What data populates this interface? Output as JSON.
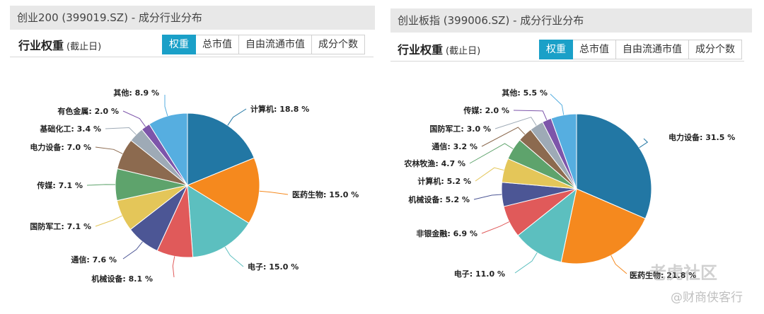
{
  "panels": [
    {
      "title": "创业200 (399019.SZ) - 成分行业分布",
      "heading": "行业权重",
      "note": "(截止日)",
      "tabs": [
        "权重",
        "总市值",
        "自由流通市值",
        "成分个数"
      ],
      "active_tab": 0
    },
    {
      "title": "创业板指 (399006.SZ) - 成分行业分布",
      "heading": "行业权重",
      "note": "(截止日)",
      "tabs": [
        "权重",
        "总市值",
        "自由流通市值",
        "成分个数"
      ],
      "active_tab": 0
    }
  ],
  "chart_data": [
    {
      "type": "pie",
      "slices": [
        {
          "label": "计算机",
          "value": 18.8,
          "color": "#2277a4",
          "text": "计算机: 18.8 %"
        },
        {
          "label": "医药生物",
          "value": 15.0,
          "color": "#f5891e",
          "text": "医药生物: 15.0 %"
        },
        {
          "label": "电子",
          "value": 15.0,
          "color": "#5cbfbf",
          "text": "电子: 15.0 %"
        },
        {
          "label": "机械设备",
          "value": 8.1,
          "color": "#e05a5a",
          "text": "机械设备: 8.1 %"
        },
        {
          "label": "通信",
          "value": 7.6,
          "color": "#4c5695",
          "text": "通信: 7.6 %"
        },
        {
          "label": "国防军工",
          "value": 7.1,
          "color": "#e4c659",
          "text": "国防军工: 7.1 %"
        },
        {
          "label": "传媒",
          "value": 7.1,
          "color": "#5ea36c",
          "text": "传媒: 7.1 %"
        },
        {
          "label": "电力设备",
          "value": 7.0,
          "color": "#8c6a4f",
          "text": "电力设备: 7.0 %"
        },
        {
          "label": "基础化工",
          "value": 3.4,
          "color": "#9eaab6",
          "text": "基础化工: 3.4 %"
        },
        {
          "label": "有色金属",
          "value": 2.0,
          "color": "#7d55aa",
          "text": "有色金属: 2.0 %"
        },
        {
          "label": "其他",
          "value": 8.9,
          "color": "#56aee0",
          "text": "其他: 8.9 %"
        }
      ]
    },
    {
      "type": "pie",
      "slices": [
        {
          "label": "电力设备",
          "value": 31.5,
          "color": "#2277a4",
          "text": "电力设备: 31.5 %"
        },
        {
          "label": "医药生物",
          "value": 21.8,
          "color": "#f5891e",
          "text": "医药生物: 21.8 %"
        },
        {
          "label": "电子",
          "value": 11.0,
          "color": "#5cbfbf",
          "text": "电子: 11.0 %"
        },
        {
          "label": "非银金融",
          "value": 6.9,
          "color": "#e05a5a",
          "text": "非银金融: 6.9 %"
        },
        {
          "label": "机械设备",
          "value": 5.2,
          "color": "#4c5695",
          "text": "机械设备: 5.2 %"
        },
        {
          "label": "计算机",
          "value": 5.2,
          "color": "#e4c659",
          "text": "计算机: 5.2 %"
        },
        {
          "label": "农林牧渔",
          "value": 4.7,
          "color": "#5ea36c",
          "text": "农林牧渔: 4.7 %"
        },
        {
          "label": "通信",
          "value": 3.2,
          "color": "#8c6a4f",
          "text": "通信: 3.2 %"
        },
        {
          "label": "国防军工",
          "value": 3.0,
          "color": "#9eaab6",
          "text": "国防军工: 3.0 %"
        },
        {
          "label": "传媒",
          "value": 2.0,
          "color": "#7d55aa",
          "text": "传媒: 2.0 %"
        },
        {
          "label": "其他",
          "value": 5.5,
          "color": "#56aee0",
          "text": "其他: 5.5 %"
        }
      ]
    }
  ],
  "watermark": {
    "line1": "老虎社区",
    "line2": "@财商侠客行"
  }
}
